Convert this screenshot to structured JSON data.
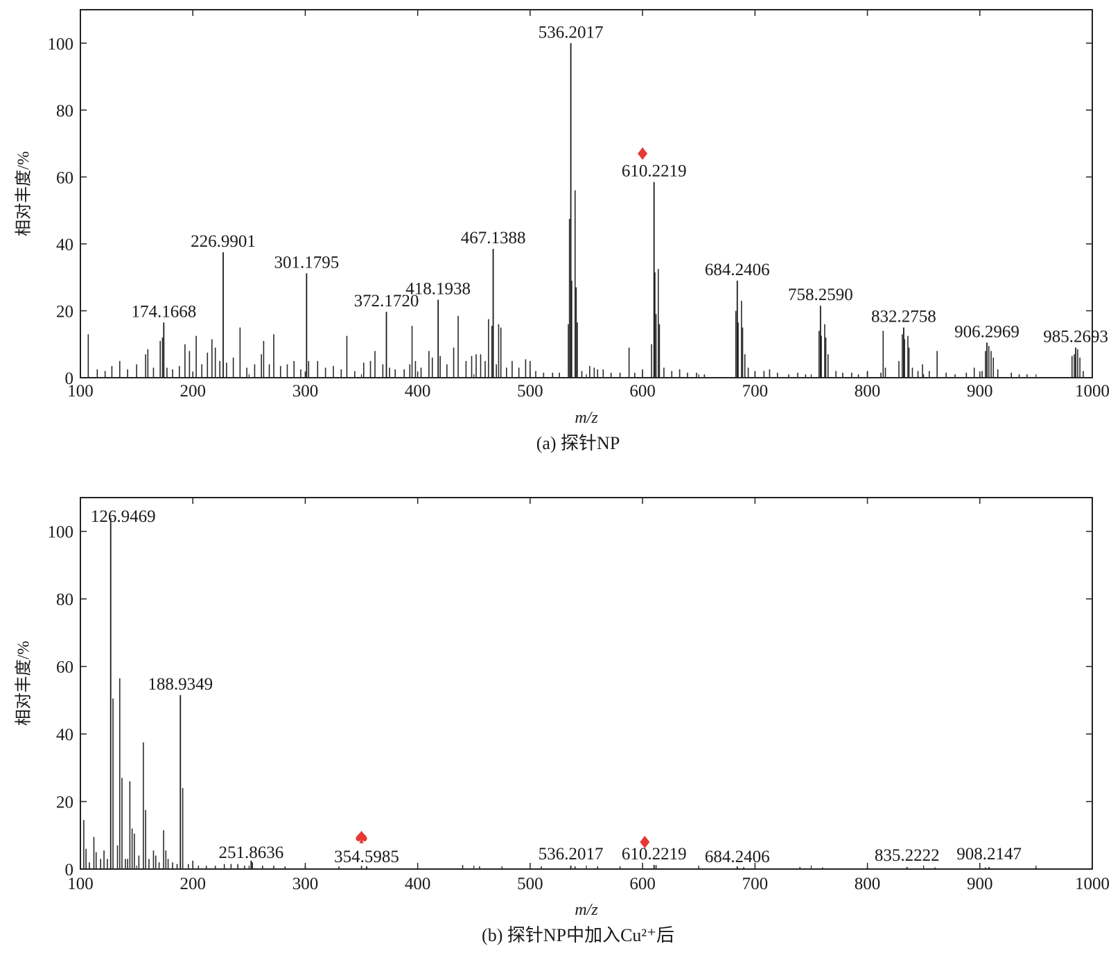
{
  "chart_data": [
    {
      "type": "bar",
      "subtype": "mass-spectrum",
      "caption": "(a) 探针NP",
      "xlabel": "m/z",
      "ylabel": "相对丰度/%",
      "xlim": [
        100,
        1000
      ],
      "ylim": [
        0,
        110
      ],
      "x_ticks": [
        100,
        200,
        300,
        400,
        500,
        600,
        700,
        800,
        900,
        1000
      ],
      "y_ticks": [
        0,
        20,
        40,
        60,
        80,
        100
      ],
      "marker_color": "#e53935",
      "labeled_peaks": [
        {
          "mz": 174.1668,
          "label": "174.1668",
          "intensity": 16.5
        },
        {
          "mz": 226.9901,
          "label": "226.9901",
          "intensity": 37.5
        },
        {
          "mz": 301.1795,
          "label": "301.1795",
          "intensity": 31.2
        },
        {
          "mz": 372.172,
          "label": "372.1720",
          "intensity": 19.7
        },
        {
          "mz": 418.1938,
          "label": "418.1938",
          "intensity": 23.3
        },
        {
          "mz": 467.1388,
          "label": "467.1388",
          "intensity": 38.5
        },
        {
          "mz": 536.2017,
          "label": "536.2017",
          "intensity": 100
        },
        {
          "mz": 610.2219,
          "label": "610.2219",
          "intensity": 58.5
        },
        {
          "mz": 684.2406,
          "label": "684.2406",
          "intensity": 29.0
        },
        {
          "mz": 758.259,
          "label": "758.2590",
          "intensity": 21.5
        },
        {
          "mz": 832.2758,
          "label": "832.2758",
          "intensity": 15.0
        },
        {
          "mz": 906.2969,
          "label": "906.2969",
          "intensity": 10.5
        },
        {
          "mz": 985.2693,
          "label": "985.2693",
          "intensity": 9.0
        }
      ],
      "other_peaks": [
        [
          107,
          13
        ],
        [
          115,
          2.5
        ],
        [
          122,
          2
        ],
        [
          128,
          3.5
        ],
        [
          135,
          5
        ],
        [
          142,
          2.5
        ],
        [
          150,
          4
        ],
        [
          158,
          7
        ],
        [
          160,
          8.5
        ],
        [
          165,
          3
        ],
        [
          171,
          11
        ],
        [
          173,
          12
        ],
        [
          177,
          3
        ],
        [
          182,
          2.5
        ],
        [
          188,
          3.5
        ],
        [
          193,
          10
        ],
        [
          197,
          8
        ],
        [
          203,
          12.5
        ],
        [
          208,
          4
        ],
        [
          213,
          7.5
        ],
        [
          217,
          11.5
        ],
        [
          220,
          9
        ],
        [
          224,
          5
        ],
        [
          230,
          4.5
        ],
        [
          236,
          6
        ],
        [
          242,
          15
        ],
        [
          248,
          3
        ],
        [
          255,
          4
        ],
        [
          261,
          7
        ],
        [
          263,
          11
        ],
        [
          268,
          4
        ],
        [
          272,
          13
        ],
        [
          278,
          3.5
        ],
        [
          284,
          4
        ],
        [
          290,
          5
        ],
        [
          296,
          2.5
        ],
        [
          303,
          5
        ],
        [
          311,
          5
        ],
        [
          318,
          3
        ],
        [
          325,
          3.5
        ],
        [
          332,
          2.5
        ],
        [
          337,
          12.5
        ],
        [
          344,
          2
        ],
        [
          352,
          4.5
        ],
        [
          358,
          5
        ],
        [
          362,
          8
        ],
        [
          369,
          4
        ],
        [
          375,
          3
        ],
        [
          380,
          2.5
        ],
        [
          388,
          2.5
        ],
        [
          393,
          4
        ],
        [
          395,
          15.5
        ],
        [
          398,
          5
        ],
        [
          403,
          3
        ],
        [
          410,
          8
        ],
        [
          413,
          6
        ],
        [
          420,
          6.5
        ],
        [
          426,
          4
        ],
        [
          432,
          9
        ],
        [
          436,
          18.5
        ],
        [
          443,
          5
        ],
        [
          448,
          6.5
        ],
        [
          452,
          7
        ],
        [
          456,
          7
        ],
        [
          460,
          5
        ],
        [
          463,
          17.5
        ],
        [
          466,
          15.5
        ],
        [
          470,
          4
        ],
        [
          472,
          16
        ],
        [
          474,
          15
        ],
        [
          479,
          3
        ],
        [
          484,
          5
        ],
        [
          490,
          3
        ],
        [
          496,
          5.5
        ],
        [
          500,
          5
        ],
        [
          505,
          2
        ],
        [
          512,
          1.5
        ],
        [
          520,
          1.5
        ],
        [
          526,
          1.5
        ],
        [
          534,
          16
        ],
        [
          535,
          47.5
        ],
        [
          537,
          29
        ],
        [
          540,
          56
        ],
        [
          541,
          27
        ],
        [
          542,
          16.5
        ],
        [
          546,
          2
        ],
        [
          553,
          3.5
        ],
        [
          557,
          3
        ],
        [
          560,
          2.5
        ],
        [
          565,
          2.5
        ],
        [
          572,
          1.5
        ],
        [
          580,
          1.5
        ],
        [
          588,
          9
        ],
        [
          593,
          1.5
        ],
        [
          600,
          2.5
        ],
        [
          608,
          10
        ],
        [
          611,
          31.5
        ],
        [
          612,
          19
        ],
        [
          614,
          32.5
        ],
        [
          615,
          16
        ],
        [
          619,
          3
        ],
        [
          626,
          2
        ],
        [
          633,
          2.5
        ],
        [
          640,
          1.5
        ],
        [
          648,
          1.5
        ],
        [
          655,
          1
        ],
        [
          683,
          20
        ],
        [
          685,
          16.5
        ],
        [
          688,
          23
        ],
        [
          689,
          15
        ],
        [
          691,
          7
        ],
        [
          694,
          3
        ],
        [
          700,
          2
        ],
        [
          708,
          2
        ],
        [
          713,
          2.5
        ],
        [
          720,
          1.5
        ],
        [
          730,
          1
        ],
        [
          738,
          1.5
        ],
        [
          745,
          1
        ],
        [
          757,
          14
        ],
        [
          759,
          12.5
        ],
        [
          762,
          16
        ],
        [
          763,
          12
        ],
        [
          765,
          7
        ],
        [
          772,
          2
        ],
        [
          778,
          1.5
        ],
        [
          786,
          1.5
        ],
        [
          792,
          1
        ],
        [
          800,
          2
        ],
        [
          812,
          1.5
        ],
        [
          814,
          14
        ],
        [
          816,
          3
        ],
        [
          828,
          5
        ],
        [
          831,
          13
        ],
        [
          833,
          11.5
        ],
        [
          836,
          12.5
        ],
        [
          837,
          9
        ],
        [
          840,
          3
        ],
        [
          845,
          2
        ],
        [
          849,
          4
        ],
        [
          855,
          2
        ],
        [
          862,
          8
        ],
        [
          870,
          1.5
        ],
        [
          878,
          1
        ],
        [
          888,
          1.5
        ],
        [
          895,
          3
        ],
        [
          902,
          2
        ],
        [
          905,
          8
        ],
        [
          908,
          9.5
        ],
        [
          910,
          8
        ],
        [
          912,
          6
        ],
        [
          916,
          2.5
        ],
        [
          928,
          1.5
        ],
        [
          935,
          1
        ],
        [
          942,
          1
        ],
        [
          982,
          6.5
        ],
        [
          984,
          7
        ],
        [
          987,
          8.5
        ],
        [
          989,
          6
        ],
        [
          992,
          2
        ]
      ],
      "markers": [
        {
          "symbol": "diamond",
          "mz": 600,
          "intensity": 67
        }
      ]
    },
    {
      "type": "bar",
      "subtype": "mass-spectrum",
      "caption": "(b) 探针NP中加入Cu²⁺后",
      "xlabel": "m/z",
      "ylabel": "相对丰度/%",
      "xlim": [
        100,
        1000
      ],
      "ylim": [
        0,
        110
      ],
      "x_ticks": [
        100,
        200,
        300,
        400,
        500,
        600,
        700,
        800,
        900,
        1000
      ],
      "y_ticks": [
        0,
        20,
        40,
        60,
        80,
        100
      ],
      "marker_color": "#e53935",
      "labeled_peaks": [
        {
          "mz": 126.9469,
          "label": "126.9469",
          "intensity": 104
        },
        {
          "mz": 188.9349,
          "label": "188.9349",
          "intensity": 51.5
        },
        {
          "mz": 251.8636,
          "label": "251.8636",
          "intensity": 2.5
        },
        {
          "mz": 354.5985,
          "label": "354.5985",
          "intensity": 0.8
        },
        {
          "mz": 536.2017,
          "label": "536.2017",
          "intensity": 1.0
        },
        {
          "mz": 610.2219,
          "label": "610.2219",
          "intensity": 1.2
        },
        {
          "mz": 684.2406,
          "label": "684.2406",
          "intensity": 0.8
        },
        {
          "mz": 835.2222,
          "label": "835.2222",
          "intensity": 0.6
        },
        {
          "mz": 908.2147,
          "label": "908.2147",
          "intensity": 0.6
        }
      ],
      "other_peaks": [
        [
          103,
          14.5
        ],
        [
          105,
          6
        ],
        [
          108,
          2
        ],
        [
          112,
          9.5
        ],
        [
          114,
          5
        ],
        [
          118,
          3
        ],
        [
          121,
          5.5
        ],
        [
          124,
          3
        ],
        [
          129,
          50.5
        ],
        [
          133,
          7
        ],
        [
          135,
          56.5
        ],
        [
          137,
          27
        ],
        [
          140,
          3
        ],
        [
          142,
          3
        ],
        [
          144,
          26
        ],
        [
          146,
          12
        ],
        [
          148,
          10.5
        ],
        [
          152,
          4
        ],
        [
          156,
          37.5
        ],
        [
          158,
          17.5
        ],
        [
          161,
          3
        ],
        [
          165,
          5.5
        ],
        [
          167,
          4
        ],
        [
          170,
          2
        ],
        [
          174,
          11.5
        ],
        [
          176,
          5.5
        ],
        [
          178,
          3
        ],
        [
          182,
          2
        ],
        [
          186,
          1.5
        ],
        [
          191,
          24
        ],
        [
          196,
          1.5
        ],
        [
          200,
          2.5
        ],
        [
          205,
          1
        ],
        [
          212,
          1
        ],
        [
          220,
          1
        ],
        [
          228,
          1.5
        ],
        [
          234,
          1.5
        ],
        [
          240,
          1.5
        ],
        [
          246,
          1
        ],
        [
          253,
          2
        ],
        [
          262,
          1
        ],
        [
          272,
          1
        ],
        [
          282,
          0.8
        ],
        [
          300,
          0.8
        ],
        [
          330,
          0.8
        ],
        [
          350,
          0.8
        ],
        [
          440,
          1.2
        ],
        [
          455,
          0.8
        ],
        [
          475,
          0.8
        ],
        [
          510,
          0.8
        ],
        [
          540,
          0.8
        ],
        [
          560,
          0.8
        ],
        [
          580,
          0.8
        ],
        [
          612,
          1.2
        ],
        [
          650,
          0.6
        ],
        [
          690,
          0.6
        ],
        [
          740,
          0.6
        ],
        [
          760,
          0.5
        ],
        [
          800,
          0.5
        ],
        [
          860,
          0.5
        ],
        [
          905,
          0.5
        ],
        [
          950,
          0.5
        ]
      ],
      "markers": [
        {
          "symbol": "spade",
          "mz": 350,
          "intensity": 9.5
        },
        {
          "symbol": "diamond",
          "mz": 602,
          "intensity": 8
        }
      ]
    }
  ]
}
